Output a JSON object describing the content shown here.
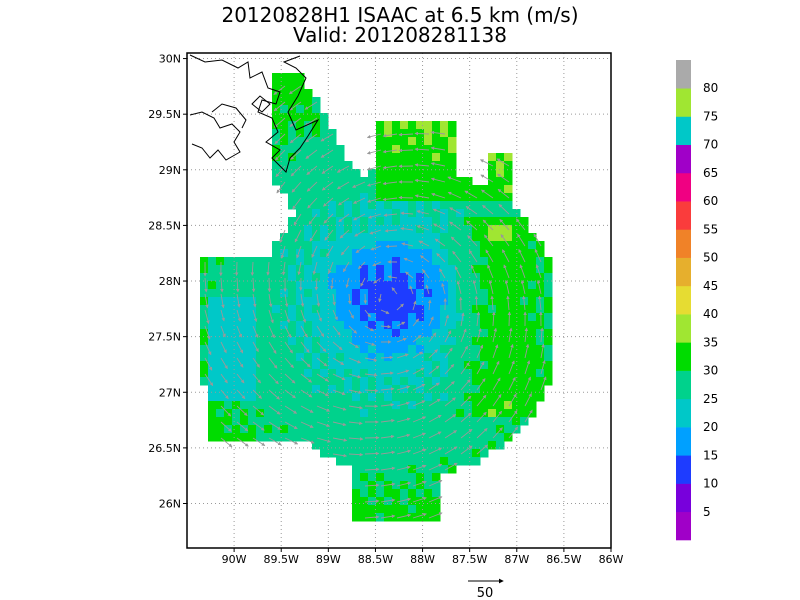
{
  "title": {
    "line1": "20120828H1 ISAAC at 6.5 km (m/s)",
    "line2": "Valid: 201208281138"
  },
  "map": {
    "lon_range": [
      -90.5,
      -86.0
    ],
    "lat_range": [
      25.6,
      30.05
    ],
    "lon_ticks": [
      {
        "value": -90.0,
        "label": "90W"
      },
      {
        "value": -89.5,
        "label": "89.5W"
      },
      {
        "value": -89.0,
        "label": "89W"
      },
      {
        "value": -88.5,
        "label": "88.5W"
      },
      {
        "value": -88.0,
        "label": "88W"
      },
      {
        "value": -87.5,
        "label": "87.5W"
      },
      {
        "value": -87.0,
        "label": "87W"
      },
      {
        "value": -86.5,
        "label": "86.5W"
      },
      {
        "value": -86.0,
        "label": "86W"
      }
    ],
    "lat_ticks": [
      {
        "value": 26.0,
        "label": "26N"
      },
      {
        "value": 26.5,
        "label": "26.5N"
      },
      {
        "value": 27.0,
        "label": "27N"
      },
      {
        "value": 27.5,
        "label": "27.5N"
      },
      {
        "value": 28.0,
        "label": "28N"
      },
      {
        "value": 28.5,
        "label": "28.5N"
      },
      {
        "value": 29.0,
        "label": "29N"
      },
      {
        "value": 29.5,
        "label": "29.5N"
      },
      {
        "value": 30.0,
        "label": "30N"
      }
    ],
    "grid": "dotted",
    "storm_center": {
      "lon": -88.35,
      "lat": 27.85
    },
    "coastline_color": "#000000",
    "vector_color": "#999999"
  },
  "colorbar": {
    "labels": [
      "5",
      "10",
      "15",
      "20",
      "25",
      "30",
      "35",
      "40",
      "45",
      "50",
      "55",
      "60",
      "65",
      "70",
      "75",
      "80"
    ],
    "colors": [
      "#a000c8",
      "#7800dc",
      "#1e3cff",
      "#00a0ff",
      "#00c8c8",
      "#00d28c",
      "#00dc00",
      "#a0e632",
      "#e6dc32",
      "#e6af2d",
      "#f08228",
      "#fa3c3c",
      "#f00082",
      "#a000c8",
      "#00c8c8",
      "#a0e632",
      "#aaaaaa"
    ]
  },
  "reference_vector": {
    "label": "50"
  }
}
